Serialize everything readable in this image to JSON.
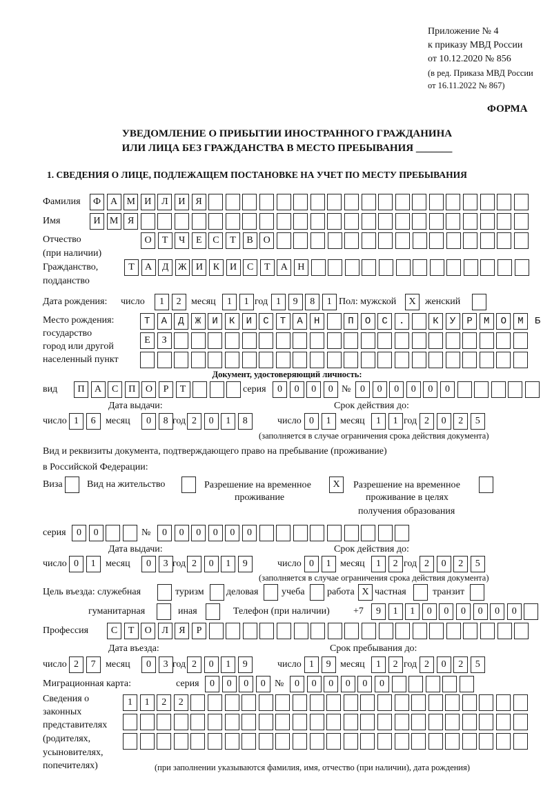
{
  "header": {
    "appendix": "Приложение № 4",
    "order": "к приказу МВД России",
    "order_date": "от 10.12.2020 № 856",
    "edition": "(в ред. Приказа МВД России",
    "edition_date": "от 16.11.2022 № 867)",
    "form_label": "ФОРМА",
    "title_line1": "УВЕДОМЛЕНИЕ О ПРИБЫТИИ ИНОСТРАННОГО ГРАЖДАНИНА",
    "title_line2": "ИЛИ ЛИЦА БЕЗ ГРАЖДАНСТВА В МЕСТО ПРЕБЫВАНИЯ _______",
    "section1": "1. СВЕДЕНИЯ О ЛИЦЕ, ПОДЛЕЖАЩЕМ ПОСТАНОВКЕ НА УЧЕТ ПО МЕСТУ ПРЕБЫВАНИЯ"
  },
  "labels": {
    "surname": "Фамилия",
    "name": "Имя",
    "patronymic": "Отчество",
    "patronymic_note": "(при наличии)",
    "citizenship": "Гражданство,",
    "citizenship2": "подданство",
    "birth_date": "Дата рождения:",
    "day": "число",
    "month": "месяц",
    "year": "год",
    "sex_male": "Пол: мужской",
    "sex_female": "женский",
    "birth_place": "Место рождения:",
    "birth_state": "государство",
    "birth_city": "город или другой",
    "birth_locality": "населенный пункт",
    "id_doc": "Документ, удостоверяющий личность:",
    "kind": "вид",
    "series": "серия",
    "number": "№",
    "issue_date": "Дата выдачи:",
    "valid_until": "Срок действия до:",
    "valid_note": "(заполняется в случае ограничения срока действия документа)",
    "right_doc1": "Вид и реквизиты документа, подтверждающего право на пребывание (проживание)",
    "right_doc2": "в Российской Федерации:",
    "visa": "Виза",
    "residence": "Вид на жительство",
    "temp_res1": "Разрешение на временное",
    "temp_res2": "проживание",
    "temp_edu1": "Разрешение на временное",
    "temp_edu2": "проживание в целях",
    "temp_edu3": "получения образования",
    "purpose": "Цель въезда: служебная",
    "tourism": "туризм",
    "business": "деловая",
    "study": "учеба",
    "work": "работа",
    "private": "частная",
    "transit": "транзит",
    "humanitarian": "гуманитарная",
    "other": "иная",
    "phone": "Телефон (при наличии)",
    "phone_prefix": "+7",
    "profession": "Профессия",
    "entry_date": "Дата въезда:",
    "stay_until": "Срок пребывания до:",
    "migration_card": "Миграционная карта:",
    "reps1": "Сведения о",
    "reps2": "законных",
    "reps3": "представителях",
    "reps4": "(родителях,",
    "reps5": "усыновителях,",
    "reps6": "попечителях)",
    "reps_note": "(при заполнении указываются фамилия, имя, отчество (при наличии), дата рождения)"
  },
  "fields": {
    "surname": {
      "v": "ФАМИЛИЯ",
      "n": 26
    },
    "name": {
      "v": "ИМЯ",
      "n": 26
    },
    "patronymic": {
      "v": "ОТЧЕСТВО",
      "n": 23
    },
    "citizenship": {
      "v": "ТАДЖИКИСТАН",
      "n": 24
    },
    "birth_day": {
      "v": "12",
      "n": 2
    },
    "birth_month": {
      "v": "11",
      "n": 2
    },
    "birth_year": {
      "v": "1981",
      "n": 4
    },
    "sex_male": {
      "v": "X",
      "n": 1
    },
    "sex_female": {
      "v": "",
      "n": 1
    },
    "birth_place1": {
      "v": "ТАДЖИКИСТАН ПОС. КУРМОМБ",
      "n": 23
    },
    "birth_place2": {
      "v": "ЕЗ",
      "n": 23
    },
    "birth_place3": {
      "v": "",
      "n": 23
    },
    "id_kind": {
      "v": "ПАСПОРТ",
      "n": 10
    },
    "id_series": {
      "v": "0000",
      "n": 4
    },
    "id_number": {
      "v": "000000",
      "n": 11
    },
    "id_issue_day": {
      "v": "16",
      "n": 2
    },
    "id_issue_month": {
      "v": "08",
      "n": 2
    },
    "id_issue_year": {
      "v": "2018",
      "n": 4
    },
    "id_valid_day": {
      "v": "01",
      "n": 2
    },
    "id_valid_month": {
      "v": "11",
      "n": 2
    },
    "id_valid_year": {
      "v": "2025",
      "n": 4
    },
    "visa": {
      "v": "",
      "n": 1
    },
    "residence": {
      "v": "",
      "n": 1
    },
    "temp_res": {
      "v": "X",
      "n": 1
    },
    "temp_edu": {
      "v": "",
      "n": 1
    },
    "doc_series": {
      "v": "00",
      "n": 4
    },
    "doc_number": {
      "v": "000000",
      "n": 15
    },
    "doc_issue_day": {
      "v": "01",
      "n": 2
    },
    "doc_issue_month": {
      "v": "03",
      "n": 2
    },
    "doc_issue_year": {
      "v": "2019",
      "n": 4
    },
    "doc_valid_day": {
      "v": "01",
      "n": 2
    },
    "doc_valid_month": {
      "v": "12",
      "n": 2
    },
    "doc_valid_year": {
      "v": "2025",
      "n": 4
    },
    "p_official": {
      "v": "",
      "n": 1
    },
    "p_tourism": {
      "v": "",
      "n": 1
    },
    "p_business": {
      "v": "",
      "n": 1
    },
    "p_study": {
      "v": "",
      "n": 1
    },
    "p_work": {
      "v": "X",
      "n": 1
    },
    "p_private": {
      "v": "",
      "n": 1
    },
    "p_transit": {
      "v": "",
      "n": 1
    },
    "p_humanitarian": {
      "v": "",
      "n": 1
    },
    "p_other": {
      "v": "",
      "n": 1
    },
    "phone": {
      "v": "911000000",
      "n": 10
    },
    "profession": {
      "v": "СТОЛЯР",
      "n": 25
    },
    "entry_day": {
      "v": "27",
      "n": 2
    },
    "entry_month": {
      "v": "03",
      "n": 2
    },
    "entry_year": {
      "v": "2019",
      "n": 4
    },
    "stay_day": {
      "v": "19",
      "n": 2
    },
    "stay_month": {
      "v": "12",
      "n": 2
    },
    "stay_year": {
      "v": "2025",
      "n": 4
    },
    "mc_series": {
      "v": "0000",
      "n": 4
    },
    "mc_number": {
      "v": "000000",
      "n": 11
    },
    "reps1": {
      "v": "1122",
      "n": 24
    },
    "reps2": {
      "v": "",
      "n": 24
    },
    "reps3": {
      "v": "",
      "n": 24
    }
  }
}
